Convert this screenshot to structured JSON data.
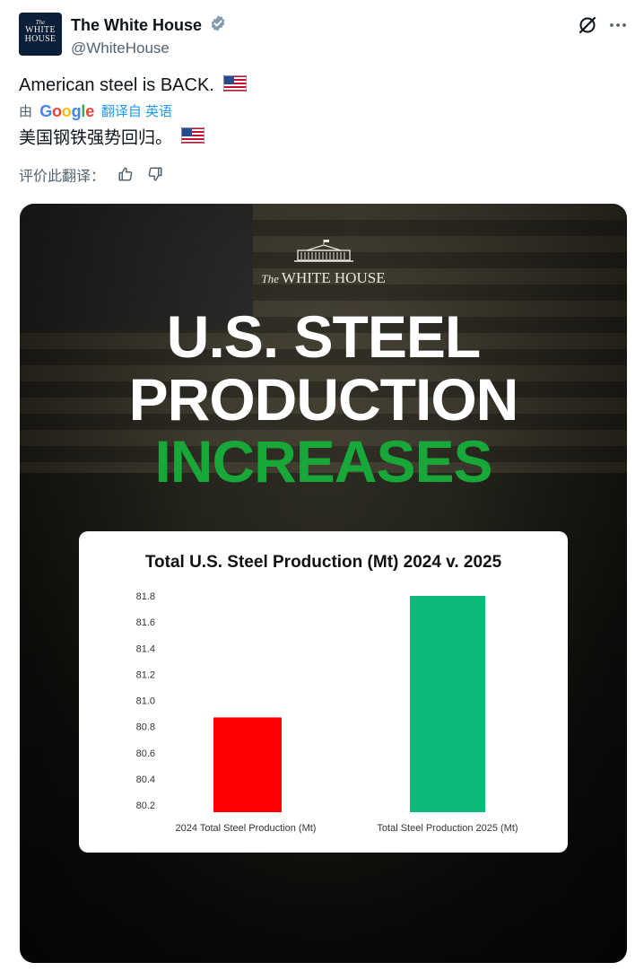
{
  "post": {
    "display_name": "The White House",
    "handle": "@WhiteHouse",
    "avatar_text": {
      "line1": "The",
      "line2": "WHITE",
      "line3": "HOUSE"
    },
    "text": "American steel is BACK.",
    "translation": {
      "prefix": "由",
      "provider": "Google",
      "link_label": "翻译自 英语",
      "translated_text": "美国钢铁强势回归。",
      "rate_label": "评价此翻译："
    }
  },
  "media": {
    "brand": {
      "the": "The",
      "name": "WHITE HOUSE"
    },
    "headline": [
      "U.S. STEEL",
      "PRODUCTION",
      "INCREASES"
    ]
  },
  "chart_data": {
    "type": "bar",
    "title": "Total U.S. Steel Production (Mt) 2024 v. 2025",
    "categories": [
      "2024 Total Steel Production (Mt)",
      "Total Steel Production 2025 (Mt)"
    ],
    "values": [
      80.87,
      81.8
    ],
    "colors": [
      "#ff0000",
      "#0db87a"
    ],
    "ylim": [
      80.2,
      81.8
    ],
    "yticks": [
      "81.8",
      "81.6",
      "81.4",
      "81.2",
      "81.0",
      "80.8",
      "80.6",
      "80.4",
      "80.2"
    ],
    "xlabel": "",
    "ylabel": "",
    "grid": false
  },
  "colors": {
    "accent_link": "#1d9bf0",
    "verified": "#829aab",
    "headline_green": "#18a83a"
  }
}
